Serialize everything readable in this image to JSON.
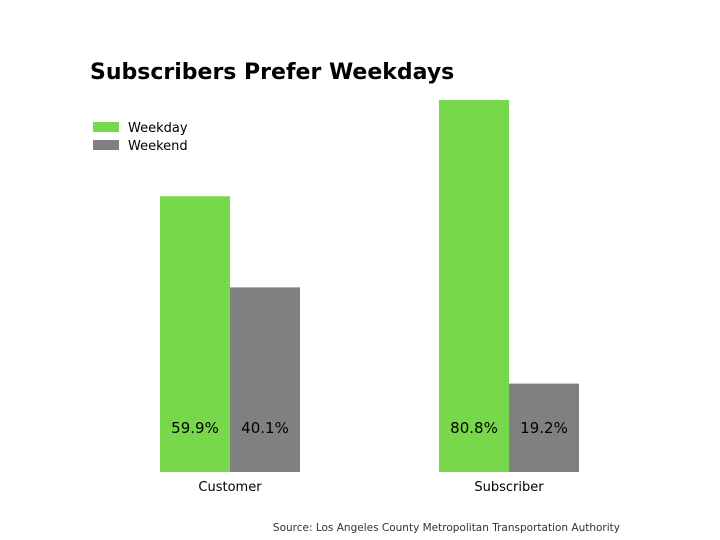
{
  "chart_data": {
    "type": "bar",
    "title": "Subscribers Prefer Weekdays",
    "categories": [
      "Customer",
      "Subscriber"
    ],
    "series": [
      {
        "name": "Weekday",
        "values": [
          59.9,
          80.8
        ],
        "labels": [
          "59.9%",
          "80.8%"
        ],
        "color": "#77d84c"
      },
      {
        "name": "Weekend",
        "values": [
          40.1,
          19.2
        ],
        "labels": [
          "40.1%",
          "19.2%"
        ],
        "color": "#808080"
      }
    ],
    "ylim": [
      0,
      80.8
    ],
    "grid": false,
    "legend_position": "top-left",
    "source": "Source: Los Angeles County Metropolitan Transportation Authority"
  }
}
